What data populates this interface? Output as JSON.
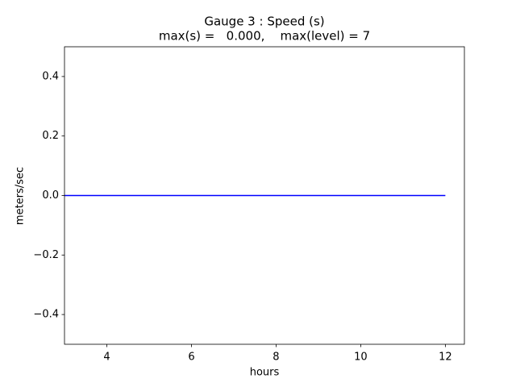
{
  "chart_data": {
    "type": "line",
    "title": "Gauge 3 : Speed (s)",
    "subtitle": "max(s) =   0.000,    max(level) = 7",
    "x_label": "hours",
    "y_label": "meters/sec",
    "x": [
      3,
      12
    ],
    "series": [
      {
        "name": "speed",
        "color": "#0000ff",
        "values": [
          0,
          0
        ]
      }
    ],
    "xlim": [
      3,
      12.45
    ],
    "ylim": [
      -0.5,
      0.5
    ],
    "xticks": [
      4,
      6,
      8,
      10,
      12
    ],
    "yticks": [
      {
        "value": -0.4,
        "label": "−0.4"
      },
      {
        "value": -0.2,
        "label": "−0.2"
      },
      {
        "value": 0,
        "label": "0.0"
      },
      0.2,
      0.4
    ],
    "grid": false
  }
}
